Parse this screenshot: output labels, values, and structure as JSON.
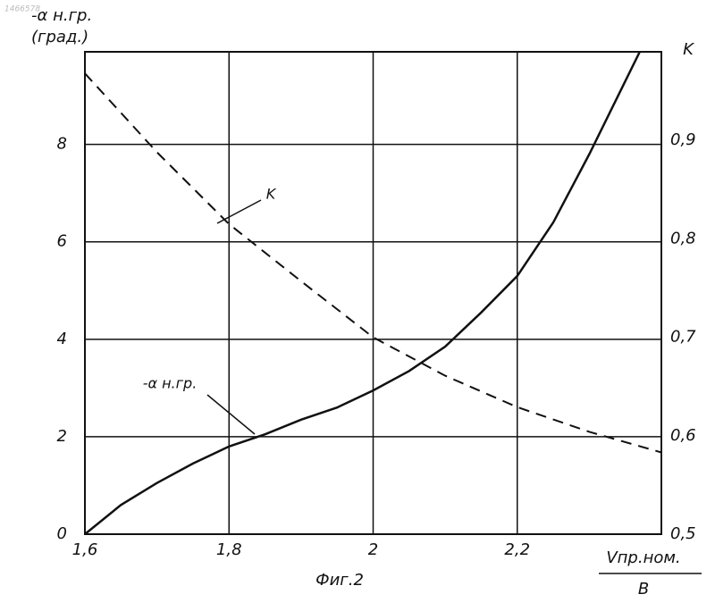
{
  "chart_data": {
    "type": "line",
    "doc_number": "1466578",
    "y_label": [
      "-α н.гр.",
      "(град.)"
    ],
    "y2_label": "K",
    "x_label": [
      "Vпр.ном.",
      "B"
    ],
    "caption": "Фиг.2",
    "xlim": [
      1.6,
      2.4
    ],
    "xticks": [
      {
        "value": 1.6,
        "label": "1,6"
      },
      {
        "value": 1.8,
        "label": "1,8"
      },
      2,
      {
        "value": 2.2,
        "label": "2,2"
      }
    ],
    "ylim": [
      0,
      9.9
    ],
    "yticks": [
      0,
      2,
      4,
      6,
      8
    ],
    "y2lim": [
      0.5,
      0.99
    ],
    "y2ticks": [
      {
        "value": 0.5,
        "label": "0,5"
      },
      {
        "value": 0.6,
        "label": "0,6"
      },
      {
        "value": 0.7,
        "label": "0,7"
      },
      {
        "value": 0.8,
        "label": "0,8"
      },
      {
        "value": 0.9,
        "label": "0,9"
      }
    ],
    "grid": true,
    "series": [
      {
        "name": "-α н.гр.",
        "color": "#111111",
        "style": "solid",
        "x": [
          1.6,
          1.65,
          1.7,
          1.75,
          1.8,
          1.85,
          1.9,
          1.95,
          2.0,
          2.05,
          2.1,
          2.15,
          2.2,
          2.25,
          2.3,
          2.35,
          2.37
        ],
        "values": [
          0,
          0.6,
          1.05,
          1.45,
          1.8,
          2.05,
          2.35,
          2.6,
          2.95,
          3.35,
          3.85,
          4.55,
          5.3,
          6.4,
          7.8,
          9.3,
          9.9
        ]
      },
      {
        "name": "K",
        "color": "#111111",
        "style": "dashed",
        "axis": "y2",
        "x": [
          1.6,
          1.7,
          1.8,
          1.9,
          2.0,
          2.1,
          2.2,
          2.3,
          2.4
        ],
        "values": [
          0.968,
          0.888,
          0.815,
          0.757,
          0.7,
          0.661,
          0.629,
          0.604,
          0.583
        ]
      }
    ]
  }
}
